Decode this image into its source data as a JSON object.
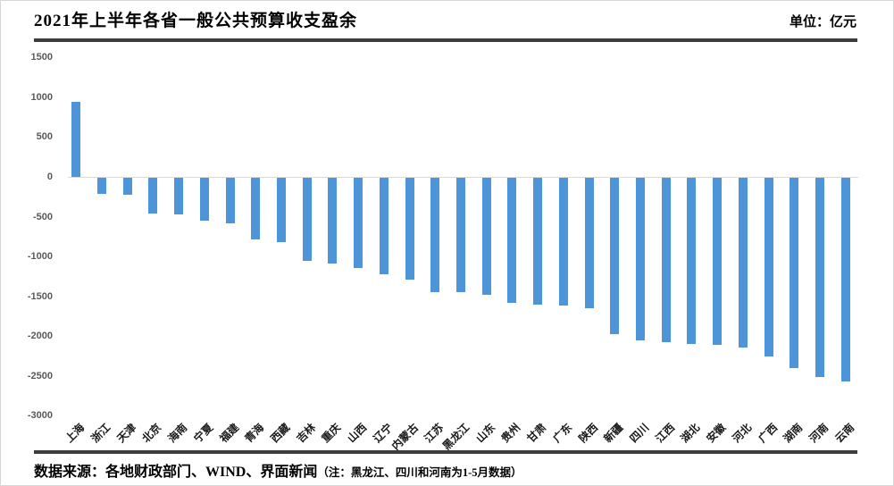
{
  "header": {
    "title": "2021年上半年各省一般公共预算收支盈余",
    "unit_label": "单位：亿元"
  },
  "footer": {
    "source": "数据来源：各地财政部门、WIND、界面新闻",
    "note": "（注：黑龙江、四川和河南为1-5月数据）"
  },
  "chart_data": {
    "type": "bar",
    "title": "2021年上半年各省一般公共预算收支盈余",
    "unit": "亿元",
    "categories": [
      "上海",
      "浙江",
      "天津",
      "北京",
      "海南",
      "宁夏",
      "福建",
      "青海",
      "西藏",
      "吉林",
      "重庆",
      "山西",
      "辽宁",
      "内蒙古",
      "江苏",
      "黑龙江",
      "山东",
      "贵州",
      "甘肃",
      "广东",
      "陕西",
      "新疆",
      "四川",
      "江西",
      "湖北",
      "安徽",
      "河北",
      "广西",
      "湖南",
      "河南",
      "云南"
    ],
    "values": [
      945,
      -205,
      -215,
      -450,
      -460,
      -537,
      -575,
      -778,
      -805,
      -1046,
      -1081,
      -1134,
      -1216,
      -1281,
      -1432,
      -1439,
      -1467,
      -1573,
      -1595,
      -1610,
      -1633,
      -1963,
      -2043,
      -2062,
      -2089,
      -2097,
      -2130,
      -2244,
      -2387,
      -2497,
      -2554
    ],
    "xlabel": "",
    "ylabel": "",
    "ylim": [
      -3000,
      1500
    ],
    "yticks": [
      1500,
      1000,
      500,
      0,
      -500,
      -1000,
      -1500,
      -2000,
      -2500,
      -3000
    ],
    "bar_color": "#4D95D8",
    "zero_line_color": "#D9D9D9",
    "grid": false,
    "legend": "none"
  }
}
